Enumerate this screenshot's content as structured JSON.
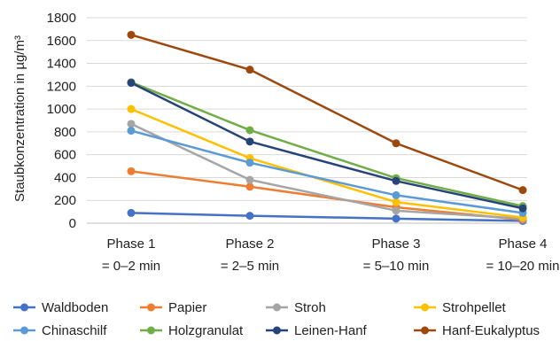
{
  "chart_data": {
    "type": "line",
    "ylabel": "Staubkonzentration in µg/m³",
    "ylim": [
      0,
      1800
    ],
    "yticks": [
      "0",
      "200",
      "400",
      "600",
      "800",
      "1000",
      "1200",
      "1400",
      "1600",
      "1800"
    ],
    "categories": [
      {
        "line1": "Phase 1",
        "line2": "= 0–2 min"
      },
      {
        "line1": "Phase 2",
        "line2": "= 2–5 min"
      },
      {
        "line1": "Phase 3",
        "line2": "= 5–10 min"
      },
      {
        "line1": "Phase 4",
        "line2": "= 10–20 min"
      }
    ],
    "grid": true,
    "legend_position": "bottom",
    "series": [
      {
        "name": "Waldboden",
        "color": "#4472c4",
        "values": [
          90,
          65,
          40,
          20
        ]
      },
      {
        "name": "Papier",
        "color": "#ed7d31",
        "values": [
          455,
          320,
          140,
          30
        ]
      },
      {
        "name": "Stroh",
        "color": "#a5a5a5",
        "values": [
          870,
          380,
          110,
          40
        ]
      },
      {
        "name": "Strohpellet",
        "color": "#ffc000",
        "values": [
          1000,
          570,
          185,
          50
        ]
      },
      {
        "name": "Chinaschilf",
        "color": "#5b9bd5",
        "values": [
          810,
          530,
          245,
          90
        ]
      },
      {
        "name": "Holzgranulat",
        "color": "#70ad47",
        "values": [
          1235,
          815,
          395,
          150
        ]
      },
      {
        "name": "Leinen-Hanf",
        "color": "#264478",
        "values": [
          1230,
          715,
          370,
          130
        ]
      },
      {
        "name": "Hanf-Eukalyptus",
        "color": "#9e480e",
        "values": [
          1650,
          1345,
          700,
          290
        ]
      }
    ]
  }
}
